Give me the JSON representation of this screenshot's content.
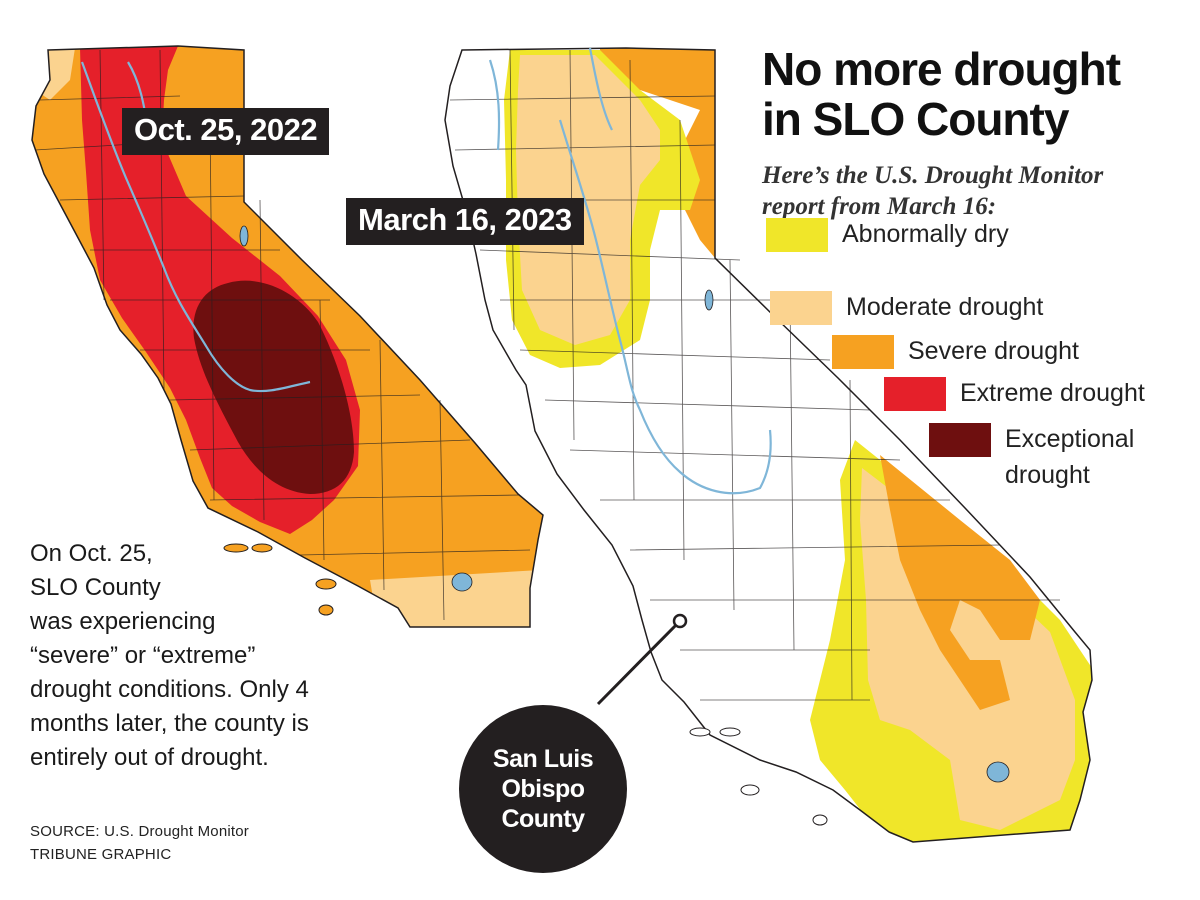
{
  "title_lines": [
    "No more drought",
    "in SLO County"
  ],
  "subtitle_lines": [
    "Here’s the  U.S. Drought Monitor",
    "report from March 16:"
  ],
  "maps": [
    {
      "date_label": "Oct. 25, 2022"
    },
    {
      "date_label": "March 16, 2023"
    }
  ],
  "legend": [
    {
      "label": "Abnormally dry",
      "color": "#f0e629"
    },
    {
      "label": "Moderate drought",
      "color": "#fbd38f"
    },
    {
      "label": "Severe drought",
      "color": "#f6a121"
    },
    {
      "label": "Extreme drought",
      "color": "#e5202a"
    },
    {
      "label": "Exceptional drought",
      "label_lines": [
        "Exceptional",
        "drought"
      ],
      "color": "#6e0f0f"
    }
  ],
  "note_lines": [
    "On Oct. 25,",
    "SLO County",
    "was experiencing",
    "“severe” or “extreme”",
    "drought conditions. Only 4",
    "months later, the county is",
    "entirely out of drought."
  ],
  "county_callout_lines": [
    "San Luis",
    "Obispo",
    "County"
  ],
  "source_lines": [
    "SOURCE: U.S. Drought Monitor",
    "TRIBUNE GRAPHIC"
  ],
  "colors": {
    "water": "#7fb6d8",
    "outline": "#231f20",
    "label_bg": "#231f20"
  }
}
